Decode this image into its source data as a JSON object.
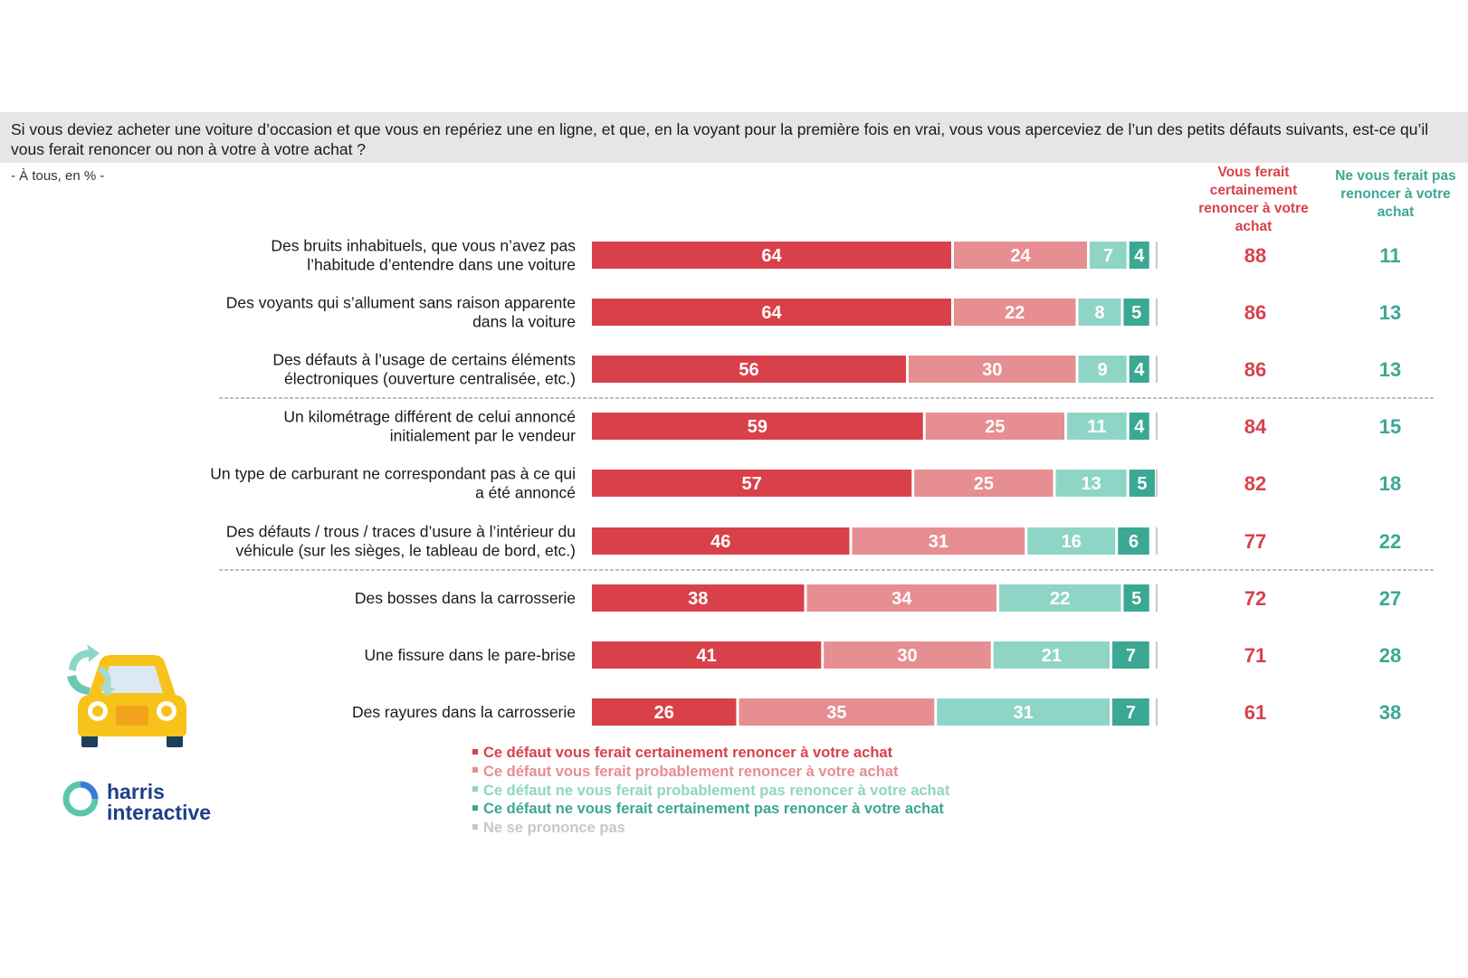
{
  "question": "Si vous deviez acheter une voiture d’occasion et que vous en repériez une en ligne, et que, en la voyant pour la première fois en vrai, vous vous aperceviez de l’un des petits défauts suivants, est-ce qu’il vous ferait renoncer ou non à votre à votre achat ?",
  "subtitle": "- À tous, en % -",
  "col_headers": {
    "red": "Vous ferait certainement renoncer à votre achat",
    "green": "Ne vous ferait pas renoncer à votre achat"
  },
  "logo_text_line1": "harris",
  "logo_text_line2": "interactive",
  "colors": {
    "certainly_renounce": "#d9414a",
    "probably_renounce": "#e68e91",
    "probably_not": "#8fd5c5",
    "certainly_not": "#3aa893",
    "no_opinion": "#c8c8c8"
  },
  "legend": [
    {
      "label": "Ce défaut vous ferait certainement renoncer à votre achat",
      "color": "#d9414a"
    },
    {
      "label": "Ce défaut vous ferait probablement renoncer à votre achat",
      "color": "#e68e91"
    },
    {
      "label": "Ce défaut ne vous ferait probablement pas renoncer à votre achat",
      "color": "#8fd5c5"
    },
    {
      "label": "Ce défaut ne vous ferait certainement pas renoncer à votre achat",
      "color": "#3aa893"
    },
    {
      "label": "Ne se prononce pas",
      "color": "#c8c8c8"
    }
  ],
  "chart_data": {
    "type": "bar",
    "orientation": "horizontal-stacked",
    "xlim": [
      0,
      100
    ],
    "series": [
      {
        "name": "Ce défaut vous ferait certainement renoncer à votre achat",
        "values": [
          64,
          64,
          56,
          59,
          57,
          46,
          38,
          41,
          26
        ]
      },
      {
        "name": "Ce défaut vous ferait probablement renoncer à votre achat",
        "values": [
          24,
          22,
          30,
          25,
          25,
          31,
          34,
          30,
          35
        ]
      },
      {
        "name": "Ce défaut ne vous ferait probablement pas renoncer à votre achat",
        "values": [
          7,
          8,
          9,
          11,
          13,
          16,
          22,
          21,
          31
        ]
      },
      {
        "name": "Ce défaut ne vous ferait certainement pas renoncer à votre achat",
        "values": [
          4,
          5,
          4,
          4,
          5,
          6,
          5,
          7,
          7
        ]
      }
    ],
    "categories": [
      [
        "Des bruits inhabituels, que vous n’avez pas",
        "l’habitude d’entendre dans une voiture"
      ],
      [
        "Des voyants qui s’allument sans raison apparente",
        "dans la voiture"
      ],
      [
        "Des défauts à l’usage de certains éléments",
        "électroniques (ouverture centralisée, etc.)"
      ],
      [
        "Un kilométrage différent de celui annoncé",
        "initialement par le vendeur"
      ],
      [
        "Un type de carburant ne correspondant pas à ce qui",
        "a été annoncé"
      ],
      [
        "Des défauts / trous / traces d’usure à l’intérieur du",
        "véhicule (sur les sièges, le tableau de bord, etc.)"
      ],
      [
        "Des bosses dans la carrosserie"
      ],
      [
        "Une fissure dans le pare-brise"
      ],
      [
        "Des rayures dans la carrosserie"
      ]
    ],
    "totals_renounce": [
      88,
      86,
      86,
      84,
      82,
      77,
      72,
      71,
      61
    ],
    "totals_not_renounce": [
      11,
      13,
      13,
      15,
      18,
      22,
      27,
      28,
      38
    ]
  }
}
